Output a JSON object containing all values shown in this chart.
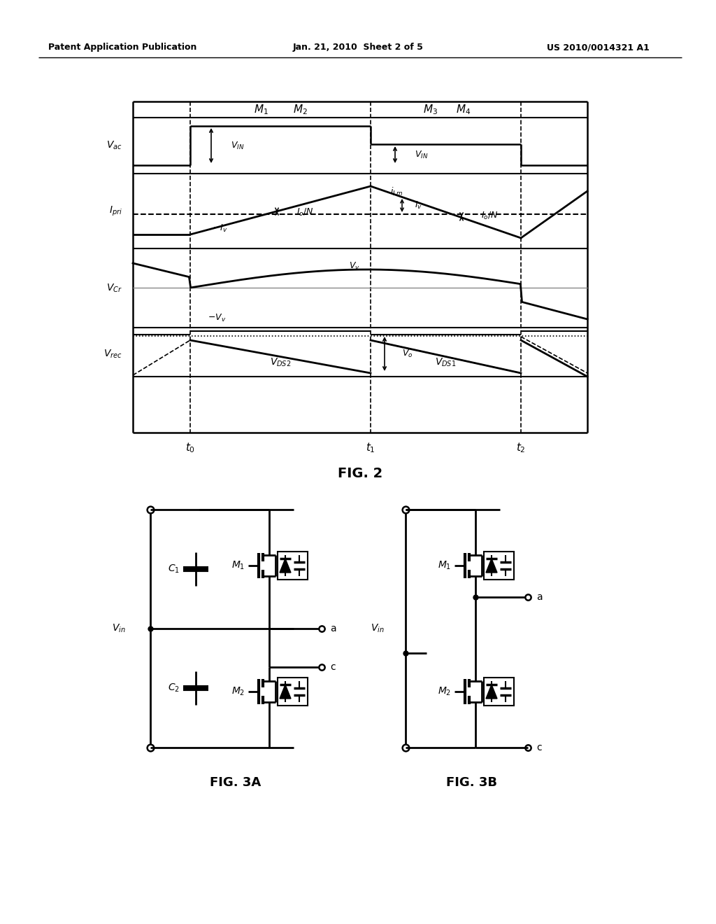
{
  "bg_color": "#ffffff",
  "header_left": "Patent Application Publication",
  "header_center": "Jan. 21, 2010  Sheet 2 of 5",
  "header_right": "US 2010/0014321 A1"
}
